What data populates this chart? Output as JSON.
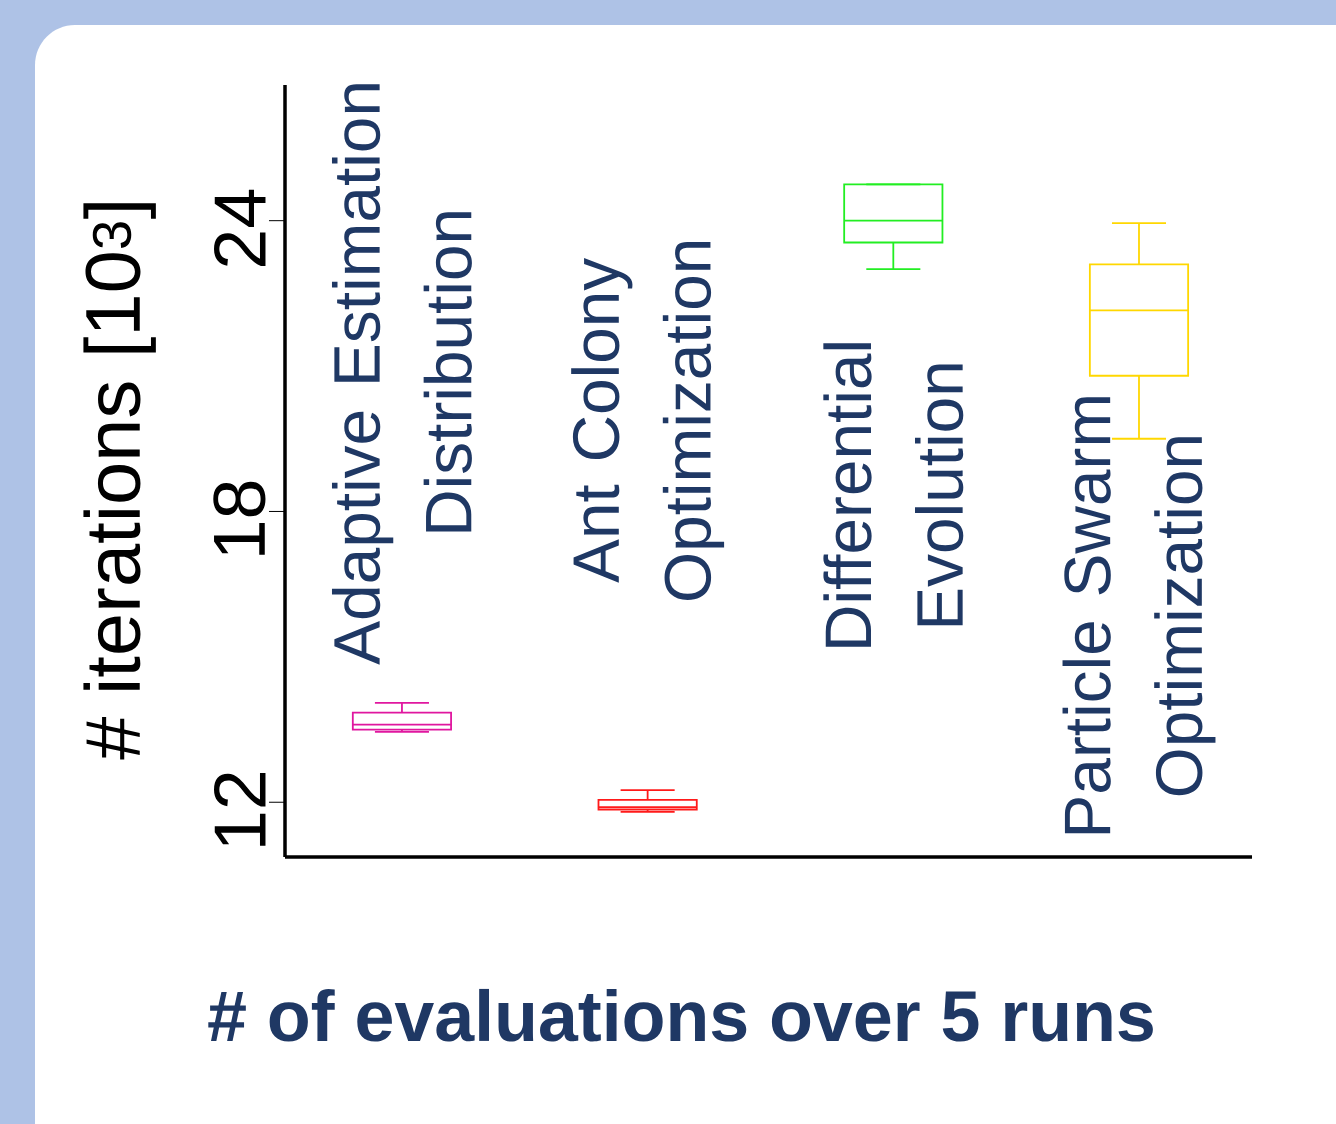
{
  "chart_data": {
    "type": "box",
    "xlabel": "# of evaluations over 5 runs",
    "ylabel": "# iterations [10$^{3}$]",
    "categories": [
      "Adaptive Estimation Distribution",
      "Ant Colony Optimization",
      "Differential Evolution",
      "Particle Swarm Optimization"
    ],
    "colors": [
      "#e0179f",
      "#ff1a1a",
      "#22ee22",
      "#ffd700"
    ],
    "boxes": [
      {
        "low": 13.45,
        "q1": 13.5,
        "median": 13.6,
        "q3": 13.85,
        "high": 14.05
      },
      {
        "low": 11.8,
        "q1": 11.85,
        "median": 11.9,
        "q3": 12.05,
        "high": 12.25
      },
      {
        "low": 23.0,
        "q1": 23.55,
        "median": 24.0,
        "q3": 24.75,
        "high": 24.75
      },
      {
        "low": 19.5,
        "q1": 20.8,
        "median": 22.15,
        "q3": 23.1,
        "high": 23.95
      }
    ],
    "ylim": [
      10.87,
      26.8
    ],
    "yticks": [
      12,
      18,
      24
    ],
    "grid": false
  }
}
